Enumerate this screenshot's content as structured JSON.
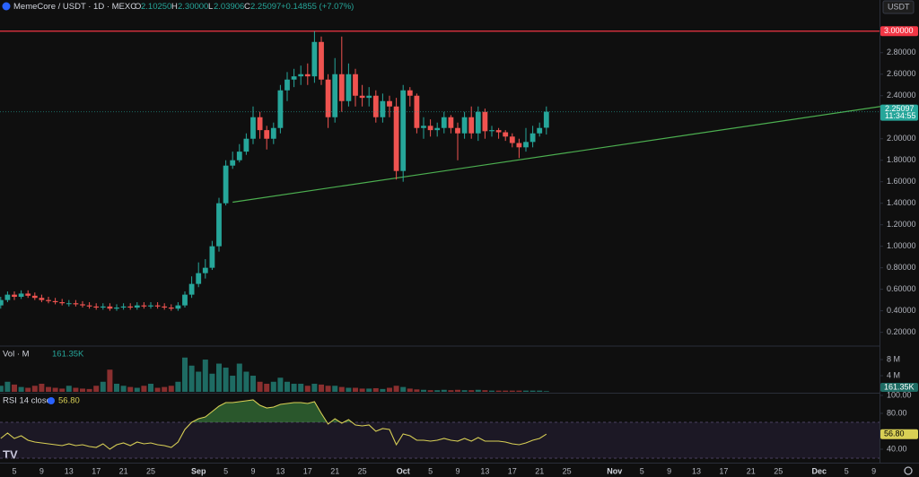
{
  "header": {
    "symbol": "MemeCore / USDT · 1D · MEXC",
    "o_label": "O",
    "o": "2.10250",
    "h_label": "H",
    "h": "2.30000",
    "l_label": "L",
    "l": "2.03906",
    "c_label": "C",
    "c": "2.25097",
    "change": "+0.14855 (+7.07%)",
    "currency": "USDT",
    "last_price": "2.25097",
    "countdown": "11:34:55"
  },
  "volume_pane": {
    "title": "Vol · M",
    "last": "161.35K"
  },
  "rsi_pane": {
    "title": "RSI 14 close",
    "last": "56.80"
  },
  "chart_data": [
    {
      "type": "candlestick",
      "up_color": "#26a69a",
      "down_color": "#ef5350",
      "categories": [
        null,
        null,
        "5",
        null,
        null,
        null,
        "9",
        null,
        null,
        null,
        "13",
        null,
        null,
        null,
        "17",
        null,
        null,
        null,
        "21",
        null,
        null,
        null,
        "25",
        null,
        null,
        null,
        null,
        null,
        null,
        "Sep",
        null,
        null,
        null,
        "5",
        null,
        null,
        null,
        "9",
        null,
        null,
        null,
        "13",
        null,
        null,
        null,
        "17",
        null,
        null,
        null,
        "21",
        null,
        null,
        null,
        "25",
        null,
        null,
        null,
        null,
        null,
        "Oct",
        null,
        null,
        null,
        "5",
        null,
        null,
        null,
        "9",
        null,
        null,
        null,
        "13",
        null,
        null,
        null,
        "17",
        null,
        null,
        null,
        "21",
        null,
        null,
        null,
        "25",
        null,
        null,
        null,
        null,
        null,
        null,
        "Nov",
        null,
        null,
        null,
        "5",
        null,
        null,
        null,
        "9",
        null,
        null,
        null,
        "13",
        null,
        null,
        null,
        "17",
        null,
        null,
        null,
        "21",
        null,
        null,
        null,
        "25",
        null,
        null,
        null,
        null,
        null,
        "Dec",
        null,
        null,
        null,
        "5",
        null,
        null,
        null,
        "9"
      ],
      "open": [
        0.45,
        0.5,
        0.55,
        0.53,
        0.56,
        0.54,
        0.52,
        0.5,
        0.49,
        0.48,
        0.47,
        0.47,
        0.46,
        0.45,
        0.44,
        0.43,
        0.44,
        0.42,
        0.43,
        0.44,
        0.43,
        0.45,
        0.44,
        0.45,
        0.44,
        0.43,
        0.42,
        0.45,
        0.55,
        0.65,
        0.75,
        0.8,
        1.0,
        1.4,
        1.75,
        1.8,
        1.88,
        2.0,
        2.2,
        2.08,
        2.0,
        2.1,
        2.45,
        2.55,
        2.58,
        2.6,
        2.58,
        2.9,
        2.55,
        2.2,
        2.6,
        2.35,
        2.6,
        2.4,
        2.38,
        2.4,
        2.2,
        2.35,
        2.3,
        1.7,
        2.45,
        2.4,
        2.1,
        2.12,
        2.08,
        2.1,
        2.2,
        2.1,
        2.05,
        2.2,
        2.05,
        2.25,
        2.07,
        2.08,
        2.06,
        2.02,
        1.96,
        1.92,
        1.97,
        2.05,
        2.1025,
        null,
        null,
        null,
        null,
        null,
        null,
        null,
        null,
        null,
        null,
        null,
        null,
        null,
        null,
        null,
        null,
        null,
        null,
        null,
        null,
        null,
        null,
        null,
        null,
        null,
        null,
        null,
        null,
        null,
        null,
        null,
        null,
        null,
        null,
        null,
        null,
        null,
        null,
        null,
        null,
        null,
        null,
        null,
        null,
        null,
        null,
        null,
        null
      ],
      "high": [
        0.53,
        0.58,
        0.58,
        0.59,
        0.59,
        0.57,
        0.55,
        0.53,
        0.52,
        0.51,
        0.5,
        0.5,
        0.49,
        0.48,
        0.47,
        0.47,
        0.47,
        0.46,
        0.47,
        0.47,
        0.48,
        0.48,
        0.48,
        0.48,
        0.47,
        0.46,
        0.48,
        0.58,
        0.72,
        0.85,
        0.88,
        1.05,
        1.45,
        1.8,
        1.88,
        1.95,
        2.05,
        2.3,
        2.25,
        2.12,
        2.15,
        2.5,
        2.62,
        2.65,
        2.68,
        2.7,
        3.0,
        2.95,
        2.6,
        2.75,
        2.95,
        2.7,
        2.65,
        2.5,
        2.48,
        2.45,
        2.42,
        2.4,
        2.38,
        2.5,
        2.48,
        2.42,
        2.2,
        2.18,
        2.15,
        2.25,
        2.22,
        2.15,
        2.25,
        2.3,
        2.3,
        2.28,
        2.12,
        2.1,
        2.08,
        2.05,
        2.0,
        2.1,
        2.12,
        2.15,
        2.3,
        null,
        null,
        null,
        null,
        null,
        null,
        null,
        null,
        null,
        null,
        null,
        null,
        null,
        null,
        null,
        null,
        null,
        null,
        null,
        null,
        null,
        null,
        null,
        null,
        null,
        null,
        null,
        null,
        null,
        null,
        null,
        null,
        null,
        null,
        null,
        null,
        null,
        null,
        null,
        null,
        null,
        null,
        null,
        null,
        null,
        null,
        null,
        null
      ],
      "low": [
        0.42,
        0.48,
        0.5,
        0.51,
        0.52,
        0.5,
        0.48,
        0.47,
        0.46,
        0.45,
        0.44,
        0.44,
        0.43,
        0.42,
        0.41,
        0.41,
        0.4,
        0.4,
        0.41,
        0.41,
        0.41,
        0.42,
        0.42,
        0.42,
        0.41,
        0.4,
        0.4,
        0.43,
        0.52,
        0.62,
        0.7,
        0.78,
        0.95,
        1.38,
        1.72,
        1.78,
        1.85,
        1.95,
        2.0,
        1.9,
        1.95,
        2.05,
        2.35,
        2.48,
        2.5,
        2.5,
        2.52,
        2.5,
        2.1,
        2.15,
        2.25,
        2.3,
        2.3,
        2.3,
        2.3,
        2.15,
        2.15,
        2.2,
        1.62,
        1.6,
        2.3,
        2.05,
        2.0,
        2.02,
        2.02,
        2.05,
        2.05,
        1.8,
        2.0,
        2.0,
        1.98,
        2.0,
        2.02,
        2.0,
        1.98,
        1.92,
        1.82,
        1.88,
        1.92,
        2.02,
        2.03906,
        null,
        null,
        null,
        null,
        null,
        null,
        null,
        null,
        null,
        null,
        null,
        null,
        null,
        null,
        null,
        null,
        null,
        null,
        null,
        null,
        null,
        null,
        null,
        null,
        null,
        null,
        null,
        null,
        null,
        null,
        null,
        null,
        null,
        null,
        null,
        null,
        null,
        null,
        null,
        null,
        null,
        null,
        null,
        null,
        null,
        null,
        null,
        null
      ],
      "close": [
        0.5,
        0.55,
        0.53,
        0.56,
        0.54,
        0.52,
        0.5,
        0.49,
        0.48,
        0.47,
        0.47,
        0.46,
        0.45,
        0.44,
        0.43,
        0.44,
        0.42,
        0.43,
        0.44,
        0.43,
        0.45,
        0.44,
        0.45,
        0.44,
        0.43,
        0.42,
        0.45,
        0.55,
        0.65,
        0.75,
        0.8,
        1.0,
        1.4,
        1.75,
        1.8,
        1.88,
        2.0,
        2.2,
        2.08,
        2.0,
        2.1,
        2.45,
        2.55,
        2.58,
        2.6,
        2.58,
        2.9,
        2.55,
        2.2,
        2.6,
        2.35,
        2.6,
        2.4,
        2.38,
        2.4,
        2.2,
        2.35,
        2.3,
        1.7,
        2.45,
        2.4,
        2.1,
        2.12,
        2.08,
        2.1,
        2.2,
        2.1,
        2.05,
        2.2,
        2.05,
        2.25,
        2.07,
        2.08,
        2.06,
        2.02,
        1.96,
        1.92,
        1.97,
        2.05,
        2.1,
        2.25097,
        null,
        null,
        null,
        null,
        null,
        null,
        null,
        null,
        null,
        null,
        null,
        null,
        null,
        null,
        null,
        null,
        null,
        null,
        null,
        null,
        null,
        null,
        null,
        null,
        null,
        null,
        null,
        null,
        null,
        null,
        null,
        null,
        null,
        null,
        null,
        null,
        null,
        null,
        null,
        null,
        null,
        null,
        null,
        null,
        null,
        null,
        null,
        null
      ],
      "ylim": [
        0.08,
        3.29
      ],
      "yticks": [
        {
          "value": 0.2,
          "label": "0.20000"
        },
        {
          "value": 0.4,
          "label": "0.40000"
        },
        {
          "value": 0.6,
          "label": "0.60000"
        },
        {
          "value": 0.8,
          "label": "0.80000"
        },
        {
          "value": 1.0,
          "label": "1.00000"
        },
        {
          "value": 1.2,
          "label": "1.20000"
        },
        {
          "value": 1.4,
          "label": "1.40000"
        },
        {
          "value": 1.6,
          "label": "1.60000"
        },
        {
          "value": 1.8,
          "label": "1.80000"
        },
        {
          "value": 2.0,
          "label": "2.00000"
        },
        {
          "value": 2.2,
          "label": "2.20000"
        },
        {
          "value": 2.4,
          "label": "2.40000"
        },
        {
          "value": 2.6,
          "label": "2.60000"
        },
        {
          "value": 2.8,
          "label": "2.80000"
        }
      ],
      "hline": {
        "value": 3.0,
        "label": "3.00000",
        "color": "#f23645"
      },
      "trendline": {
        "x": [
          34,
          128
        ],
        "y": [
          1.41,
          2.3
        ],
        "color": "#4caf50"
      }
    },
    {
      "type": "bar",
      "up_color": "#1e6b63",
      "down_color": "#8a2f2f",
      "values": [
        1500000,
        2500000,
        1800000,
        1200000,
        1000000,
        1500000,
        2000000,
        1200000,
        1000000,
        800000,
        1500000,
        1000000,
        800000,
        700000,
        1500000,
        2500000,
        5500000,
        2000000,
        1500000,
        1200000,
        1000000,
        1500000,
        2000000,
        1000000,
        1200000,
        1500000,
        2500000,
        8500000,
        6500000,
        5000000,
        8000000,
        4500000,
        7000000,
        6000000,
        4000000,
        7000000,
        5000000,
        4000000,
        2500000,
        2000000,
        2500000,
        3500000,
        2500000,
        2000000,
        2000000,
        1500000,
        2000000,
        1800000,
        1500000,
        1500000,
        1200000,
        1000000,
        1000000,
        800000,
        800000,
        900000,
        700000,
        1000000,
        1500000,
        1200000,
        800000,
        600000,
        500000,
        400000,
        400000,
        500000,
        400000,
        500000,
        400000,
        400000,
        500000,
        400000,
        300000,
        300000,
        300000,
        300000,
        300000,
        300000,
        300000,
        300000,
        161350,
        null,
        null,
        null,
        null,
        null,
        null,
        null,
        null,
        null,
        null,
        null,
        null,
        null,
        null,
        null,
        null,
        null,
        null,
        null,
        null,
        null,
        null,
        null,
        null,
        null,
        null,
        null,
        null,
        null,
        null,
        null,
        null,
        null,
        null,
        null,
        null,
        null,
        null,
        null,
        null,
        null,
        null,
        null,
        null,
        null,
        null,
        null,
        null
      ],
      "ylim": [
        0,
        10900000
      ],
      "yticks": [
        {
          "value": 4000000,
          "label": "4 M"
        },
        {
          "value": 8000000,
          "label": "8 M"
        }
      ]
    },
    {
      "type": "line",
      "color": "#d8cf55",
      "band": [
        30,
        70
      ],
      "fill_color": "#4caf50",
      "values": [
        52,
        58,
        52,
        55,
        50,
        48,
        47,
        46,
        45,
        44,
        46,
        44,
        45,
        43,
        42,
        46,
        40,
        45,
        47,
        44,
        48,
        46,
        47,
        45,
        44,
        42,
        48,
        62,
        70,
        74,
        76,
        82,
        88,
        92,
        92,
        93,
        94,
        95,
        89,
        86,
        87,
        90,
        91,
        92,
        92,
        91,
        93,
        80,
        68,
        74,
        69,
        73,
        67,
        66,
        67,
        60,
        63,
        62,
        45,
        57,
        55,
        50,
        50,
        49,
        50,
        52,
        50,
        49,
        52,
        49,
        53,
        49,
        49,
        49,
        48,
        46,
        45,
        47,
        50,
        52,
        56.8,
        null,
        null,
        null,
        null,
        null,
        null,
        null,
        null,
        null,
        null,
        null,
        null,
        null,
        null,
        null,
        null,
        null,
        null,
        null,
        null,
        null,
        null,
        null,
        null,
        null,
        null,
        null,
        null,
        null,
        null,
        null,
        null,
        null,
        null,
        null,
        null,
        null,
        null,
        null,
        null,
        null,
        null,
        null,
        null,
        null,
        null,
        null,
        null
      ],
      "ylim": [
        26,
        101
      ],
      "yticks": [
        {
          "value": 40,
          "label": "40.00"
        },
        {
          "value": 80,
          "label": "80.00"
        },
        {
          "value": 100,
          "label": "100.00"
        }
      ]
    }
  ]
}
